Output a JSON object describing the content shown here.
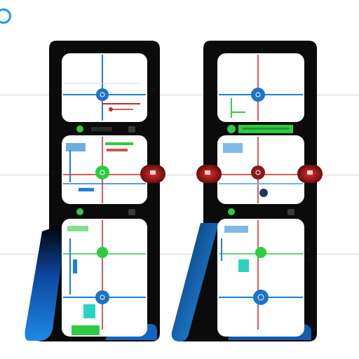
{
  "header": {
    "title": "",
    "subtitle": ""
  },
  "colors": {
    "frame": "#0b0b0b",
    "panel": "#ffffff",
    "axis_blue": "#1e7fd8",
    "axis_red": "#c62828",
    "node_blue": "#1c73c9",
    "node_green": "#2ecc40",
    "node_darkred": "#8b1a1a",
    "accent_teal": "#2bd3c0",
    "gradient_blue": "#1565c0"
  },
  "icons": [
    "logo-icon",
    "diamond-icon",
    "arrow-icon",
    "node-icon"
  ]
}
